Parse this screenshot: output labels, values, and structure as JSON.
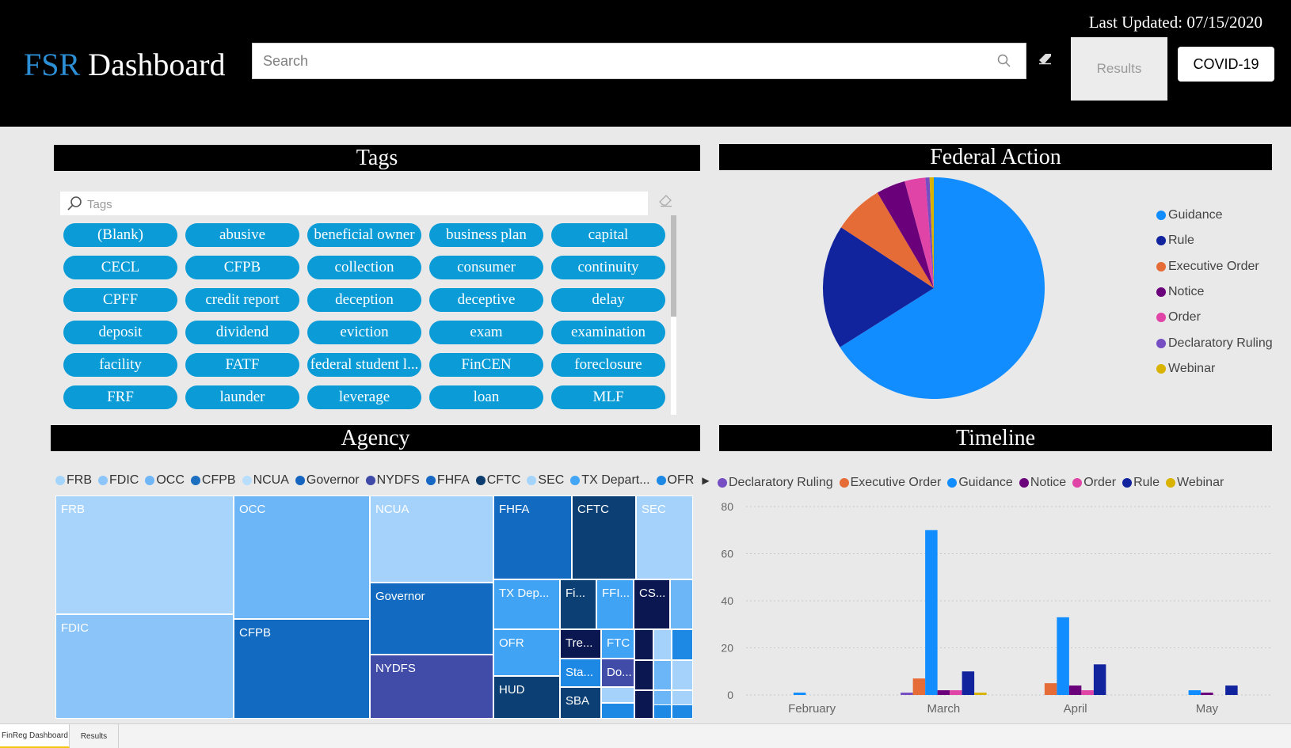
{
  "header": {
    "logo_prefix": "FSR",
    "logo_suffix": "Dashboard",
    "last_updated": "Last Updated: 07/15/2020",
    "search_placeholder": "Search",
    "results_label": "Results",
    "covid_label": "COVID-19"
  },
  "tags_panel": {
    "title": "Tags",
    "search_placeholder": "Tags",
    "tags": [
      "(Blank)",
      "abusive",
      "beneficial owner",
      "business plan",
      "capital",
      "CECL",
      "CFPB",
      "collection",
      "consumer",
      "continuity",
      "CPFF",
      "credit report",
      "deception",
      "deceptive",
      "delay",
      "deposit",
      "dividend",
      "eviction",
      "exam",
      "examination",
      "facility",
      "FATF",
      "federal student l...",
      "FinCEN",
      "foreclosure",
      "FRF",
      "launder",
      "leverage",
      "loan",
      "MLF"
    ]
  },
  "federal_action": {
    "title": "Federal Action",
    "legend": [
      {
        "label": "Guidance",
        "color": "#118dff"
      },
      {
        "label": "Rule",
        "color": "#12239e"
      },
      {
        "label": "Executive Order",
        "color": "#e66c37"
      },
      {
        "label": "Notice",
        "color": "#6b007b"
      },
      {
        "label": "Order",
        "color": "#e044a7"
      },
      {
        "label": "Declaratory Ruling",
        "color": "#744ec2"
      },
      {
        "label": "Webinar",
        "color": "#d9b300"
      }
    ],
    "chart_data": {
      "type": "pie",
      "labels": [
        "Guidance",
        "Rule",
        "Executive Order",
        "Notice",
        "Order",
        "Declaratory Ruling",
        "Webinar"
      ],
      "values": [
        109,
        30,
        12,
        7,
        5,
        1,
        1
      ],
      "colors": [
        "#118dff",
        "#12239e",
        "#e66c37",
        "#6b007b",
        "#e044a7",
        "#744ec2",
        "#d9b300"
      ]
    }
  },
  "agency": {
    "title": "Agency",
    "legend": [
      {
        "label": "FRB",
        "color": "#a6d5fb"
      },
      {
        "label": "FDIC",
        "color": "#8cc5f9"
      },
      {
        "label": "OCC",
        "color": "#6fb6f7"
      },
      {
        "label": "CFPB",
        "color": "#1d6fc0"
      },
      {
        "label": "NCUA",
        "color": "#b9defc"
      },
      {
        "label": "Governor",
        "color": "#1565c0"
      },
      {
        "label": "NYDFS",
        "color": "#3f4aa8"
      },
      {
        "label": "FHFA",
        "color": "#1668c4"
      },
      {
        "label": "CFTC",
        "color": "#0d3d6e"
      },
      {
        "label": "SEC",
        "color": "#a5d4fb"
      },
      {
        "label": "TX Depart...",
        "color": "#42a5f5"
      },
      {
        "label": "OFR",
        "color": "#1e88e5"
      }
    ],
    "treemap": [
      {
        "label": "FRB",
        "color": "#a8d4fb"
      },
      {
        "label": "FDIC",
        "color": "#8ac4f8"
      },
      {
        "label": "OCC",
        "color": "#6cb5f6"
      },
      {
        "label": "CFPB",
        "color": "#126bc1"
      },
      {
        "label": "NCUA",
        "color": "#a5d2fb"
      },
      {
        "label": "Governor",
        "color": "#126bc1"
      },
      {
        "label": "NYDFS",
        "color": "#414ca9"
      },
      {
        "label": "FHFA",
        "color": "#126bc1"
      },
      {
        "label": "CFTC",
        "color": "#0c3f73"
      },
      {
        "label": "SEC",
        "color": "#a5d2fb"
      },
      {
        "label": "TX Dep...",
        "color": "#40a3f3"
      },
      {
        "label": "Fi...",
        "color": "#0c3f73"
      },
      {
        "label": "FFI...",
        "color": "#40a3f3"
      },
      {
        "label": "CS...",
        "color": "#0b1750"
      },
      {
        "label": "",
        "color": "#6cb5f6"
      },
      {
        "label": "OFR",
        "color": "#40a3f3"
      },
      {
        "label": "Tre...",
        "color": "#0b1750"
      },
      {
        "label": "FTC",
        "color": "#40a3f3"
      },
      {
        "label": "Sta...",
        "color": "#1e88e5"
      },
      {
        "label": "Do...",
        "color": "#414ca9"
      },
      {
        "label": "HUD",
        "color": "#0c3f73"
      },
      {
        "label": "SBA",
        "color": "#0c3f73"
      },
      {
        "label": "",
        "color": "#a5d2fb"
      },
      {
        "label": "",
        "color": "#1e88e5"
      },
      {
        "label": "",
        "color": "#0b1750"
      },
      {
        "label": "",
        "color": "#a5d2fb"
      },
      {
        "label": "",
        "color": "#1e88e5"
      },
      {
        "label": "",
        "color": "#0b1750"
      },
      {
        "label": "",
        "color": "#6cb5f6"
      },
      {
        "label": "",
        "color": "#a5d2fb"
      },
      {
        "label": "",
        "color": "#0b1750"
      },
      {
        "label": "",
        "color": "#6cb5f6"
      },
      {
        "label": "",
        "color": "#a5d2fb"
      },
      {
        "label": "",
        "color": "#1e88e5"
      },
      {
        "label": "",
        "color": "#1e88e5"
      }
    ]
  },
  "timeline": {
    "title": "Timeline",
    "legend": [
      {
        "label": "Declaratory Ruling",
        "color": "#744ec2"
      },
      {
        "label": "Executive Order",
        "color": "#e66c37"
      },
      {
        "label": "Guidance",
        "color": "#118dff"
      },
      {
        "label": "Notice",
        "color": "#6b007b"
      },
      {
        "label": "Order",
        "color": "#e044a7"
      },
      {
        "label": "Rule",
        "color": "#12239e"
      },
      {
        "label": "Webinar",
        "color": "#d9b300"
      }
    ],
    "chart_data": {
      "type": "bar",
      "categories": [
        "February",
        "March",
        "April",
        "May"
      ],
      "ylim": [
        0,
        80
      ],
      "yticks": [
        0,
        20,
        40,
        60,
        80
      ],
      "series": [
        {
          "name": "Declaratory Ruling",
          "color": "#744ec2",
          "values": [
            0,
            1,
            0,
            0
          ]
        },
        {
          "name": "Executive Order",
          "color": "#e66c37",
          "values": [
            0,
            7,
            5,
            0
          ]
        },
        {
          "name": "Guidance",
          "color": "#118dff",
          "values": [
            1,
            70,
            33,
            2
          ]
        },
        {
          "name": "Notice",
          "color": "#6b007b",
          "values": [
            0,
            2,
            4,
            1
          ]
        },
        {
          "name": "Order",
          "color": "#e044a7",
          "values": [
            0,
            2,
            2,
            0
          ]
        },
        {
          "name": "Rule",
          "color": "#12239e",
          "values": [
            0,
            10,
            13,
            4
          ]
        },
        {
          "name": "Webinar",
          "color": "#d9b300",
          "values": [
            0,
            1,
            0,
            0
          ]
        }
      ]
    }
  },
  "bottom_tabs": [
    "FinReg Dashboard",
    "Results"
  ]
}
